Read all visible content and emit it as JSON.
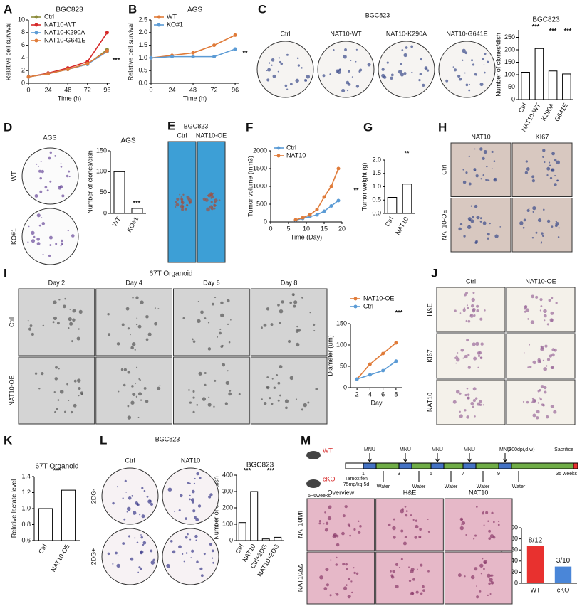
{
  "chart_data": [
    {
      "type": "line",
      "panel": "A",
      "title": "BGC823",
      "xlabel": "Time (h)",
      "ylabel": "Relative cell survival",
      "x": [
        0,
        24,
        48,
        72,
        96
      ],
      "xlim": [
        0,
        100
      ],
      "xticks": [
        0,
        24,
        48,
        72,
        96
      ],
      "ylim": [
        0,
        10
      ],
      "yticks": [
        0,
        2,
        4,
        6,
        8,
        10
      ],
      "legend": "upper left",
      "annotations": [
        "***"
      ],
      "series": [
        {
          "name": "Ctrl",
          "color": "#8b8b3a",
          "values": [
            1,
            1.5,
            2.2,
            3.0,
            5.3
          ]
        },
        {
          "name": "NAT10-WT",
          "color": "#d62a2a",
          "values": [
            1,
            1.6,
            2.4,
            3.4,
            8.0
          ]
        },
        {
          "name": "NAT10-K290A",
          "color": "#5b9bd5",
          "values": [
            1,
            1.5,
            2.2,
            3.0,
            5.0
          ]
        },
        {
          "name": "NAT10-G641E",
          "color": "#e07b39",
          "values": [
            1,
            1.5,
            2.2,
            3.1,
            5.1
          ]
        }
      ]
    },
    {
      "type": "line",
      "panel": "B",
      "title": "AGS",
      "xlabel": "Time (h)",
      "ylabel": "Relative cell survival",
      "x": [
        0,
        24,
        48,
        72,
        96
      ],
      "xlim": [
        0,
        100
      ],
      "xticks": [
        0,
        24,
        48,
        72,
        96
      ],
      "ylim": [
        0,
        2.5
      ],
      "yticks": [
        {
          "value": 0,
          "label": "0.0"
        },
        0.5,
        {
          "value": 1,
          "label": "1.0"
        },
        1.5,
        {
          "value": 2,
          "label": "2.0"
        },
        2.5
      ],
      "legend": "upper left",
      "annotations": [
        "**"
      ],
      "series": [
        {
          "name": "WT",
          "color": "#e07b39",
          "values": [
            1,
            1.1,
            1.2,
            1.5,
            1.9
          ]
        },
        {
          "name": "KO#1",
          "color": "#5b9bd5",
          "values": [
            1,
            1.05,
            1.05,
            1.05,
            1.35
          ]
        }
      ]
    },
    {
      "type": "bar",
      "title": "BGC823",
      "ylabel": "Number of clones/dish",
      "categories": [
        "Ctrl",
        "NAT10-WT",
        "K290A",
        "G641E"
      ],
      "values": [
        110,
        205,
        115,
        103
      ],
      "color": "#ffffff",
      "rotate_labels": true,
      "ylim": [
        0,
        280
      ],
      "yticks": [
        0,
        50,
        100,
        150,
        200,
        250
      ],
      "annotations": [
        "***",
        "***",
        "***"
      ]
    },
    {
      "type": "bar",
      "title": "AGS",
      "ylabel": "Number of clones/dish",
      "categories": [
        "WT",
        "KO#1"
      ],
      "values": [
        100,
        12
      ],
      "color": "#ffffff",
      "rotate_labels": true,
      "ylim": [
        0,
        150
      ],
      "yticks": [
        0,
        50,
        100,
        150
      ],
      "annotations": [
        "***"
      ]
    },
    {
      "type": "line",
      "panel": "F",
      "xlabel": "Time (Day)",
      "ylabel": "Tumor volume (mm3)",
      "x": [
        7,
        9,
        11,
        13,
        15,
        17,
        19
      ],
      "xlim": [
        0,
        20
      ],
      "xticks": [
        0,
        5,
        10,
        15,
        20
      ],
      "ylim": [
        0,
        2000
      ],
      "yticks": [
        0,
        500,
        1000,
        1500,
        2000
      ],
      "legend": "upper left",
      "annotations": [
        "**"
      ],
      "series": [
        {
          "name": "Ctrl",
          "color": "#5b9bd5",
          "values": [
            50,
            100,
            150,
            200,
            300,
            450,
            600
          ]
        },
        {
          "name": "NAT10",
          "color": "#e07b39",
          "values": [
            60,
            120,
            200,
            350,
            700,
            1000,
            1500
          ]
        }
      ]
    },
    {
      "type": "bar",
      "panel": "G",
      "ylabel": "Tumor weight (g)",
      "categories": [
        "Ctrl",
        "NAT10"
      ],
      "values": [
        0.6,
        1.1
      ],
      "color": "#ffffff",
      "rotate_labels": true,
      "ylim": [
        0,
        2
      ],
      "yticks": [
        {
          "value": 0,
          "label": "0.0"
        },
        0.5,
        {
          "value": 1,
          "label": "1.0"
        },
        1.5,
        {
          "value": 2,
          "label": "2.0"
        }
      ],
      "annotations": [
        "**"
      ]
    },
    {
      "type": "line",
      "xlabel": "Day",
      "ylabel": "Diameter (um)",
      "x": [
        2,
        4,
        6,
        8
      ],
      "xlim": [
        1,
        9
      ],
      "xticks": [
        2,
        4,
        6,
        8
      ],
      "ylim": [
        0,
        150
      ],
      "yticks": [
        0,
        50,
        100,
        150
      ],
      "legend": "upper left",
      "annotations": [
        "***"
      ],
      "series": [
        {
          "name": "NAT10-OE",
          "color": "#e07b39",
          "values": [
            20,
            55,
            80,
            105
          ]
        },
        {
          "name": "Ctrl",
          "color": "#5b9bd5",
          "values": [
            20,
            30,
            40,
            62
          ]
        }
      ]
    },
    {
      "type": "bar",
      "panel": "K",
      "title": "67T Organoid",
      "ylabel": "Relative lactate level",
      "categories": [
        "Ctrl",
        "NAT10-OE"
      ],
      "values": [
        1.0,
        1.23
      ],
      "color": "#ffffff",
      "rotate_labels": true,
      "ylim": [
        0.6,
        1.4
      ],
      "yticks": [
        0.6,
        0.8,
        {
          "value": 1,
          "label": "1.0"
        },
        1.2,
        1.4
      ],
      "annotations": [
        "***"
      ]
    },
    {
      "type": "bar",
      "title": "BGC823",
      "ylabel": "Number of clones/dish",
      "categories": [
        "Ctrl",
        "NAT10",
        "Ctrl+2DG",
        "NAT10+2DG"
      ],
      "values": [
        110,
        300,
        10,
        20
      ],
      "color": "#ffffff",
      "rotate_labels": true,
      "ylim": [
        0,
        400
      ],
      "yticks": [
        0,
        100,
        200,
        300,
        400
      ],
      "annotations": [
        "***",
        "***"
      ]
    },
    {
      "type": "bar",
      "ylabel": "Tumor incidence (%)",
      "categories": [
        "WT",
        "cKO"
      ],
      "values": [
        66.7,
        30
      ],
      "value_labels": [
        "8/12",
        "3/10"
      ],
      "colors": [
        "#e8312f",
        "#4a86d8"
      ],
      "ylim": [
        0,
        100
      ],
      "yticks": [
        0,
        20,
        40,
        60,
        80,
        100
      ]
    }
  ],
  "photos": [
    {
      "panel": "C",
      "title": "BGC823",
      "columns": [
        "Ctrl",
        "NAT10-WT",
        "NAT10-K290A",
        "NAT10-G641E"
      ]
    },
    {
      "panel": "D",
      "title": "AGS",
      "rows": [
        "WT",
        "KO#1"
      ]
    },
    {
      "panel": "E",
      "title": "BGC823",
      "columns": [
        "Ctrl",
        "NAT10-OE"
      ]
    },
    {
      "panel": "H",
      "columns": [
        "NAT10",
        "KI67"
      ],
      "rows": [
        "Ctrl",
        "NAT10-OE"
      ]
    },
    {
      "panel": "I",
      "title": "67T Organoid",
      "columns": [
        "Day 2",
        "Day 4",
        "Day 6",
        "Day 8"
      ],
      "rows": [
        "Ctrl",
        "NAT10-OE"
      ]
    },
    {
      "panel": "J",
      "columns": [
        "Ctrl",
        "NAT10-OE"
      ],
      "rows": [
        "H&E",
        "KI67",
        "NAT10"
      ]
    },
    {
      "panel": "L",
      "title": "BGC823",
      "columns": [
        "Ctrl",
        "NAT10"
      ],
      "rows": [
        "2DG-",
        "2DG+"
      ]
    },
    {
      "panel": "M",
      "columns": [
        "Overview",
        "H&E",
        "NAT10"
      ],
      "rows": [
        "NAT10fl/fl",
        "NAT10ΔΔ"
      ]
    }
  ],
  "schematic": {
    "groups": [
      "WT",
      "cKO"
    ],
    "age": "5~6weeks",
    "treatment": [
      "Tamoxifen",
      "75mg/kg,5d"
    ],
    "mnu": [
      "MNU",
      "MNU",
      "MNU",
      "MNU",
      "MNU"
    ],
    "mnu_note": "(300dpi,d.w)",
    "weeks": [
      "1",
      "3",
      "5",
      "7",
      "9"
    ],
    "water": [
      "Water",
      "Water",
      "Water",
      "Water",
      "Water"
    ],
    "sacrifice": "Sacrifice",
    "end": "35 weeks"
  }
}
